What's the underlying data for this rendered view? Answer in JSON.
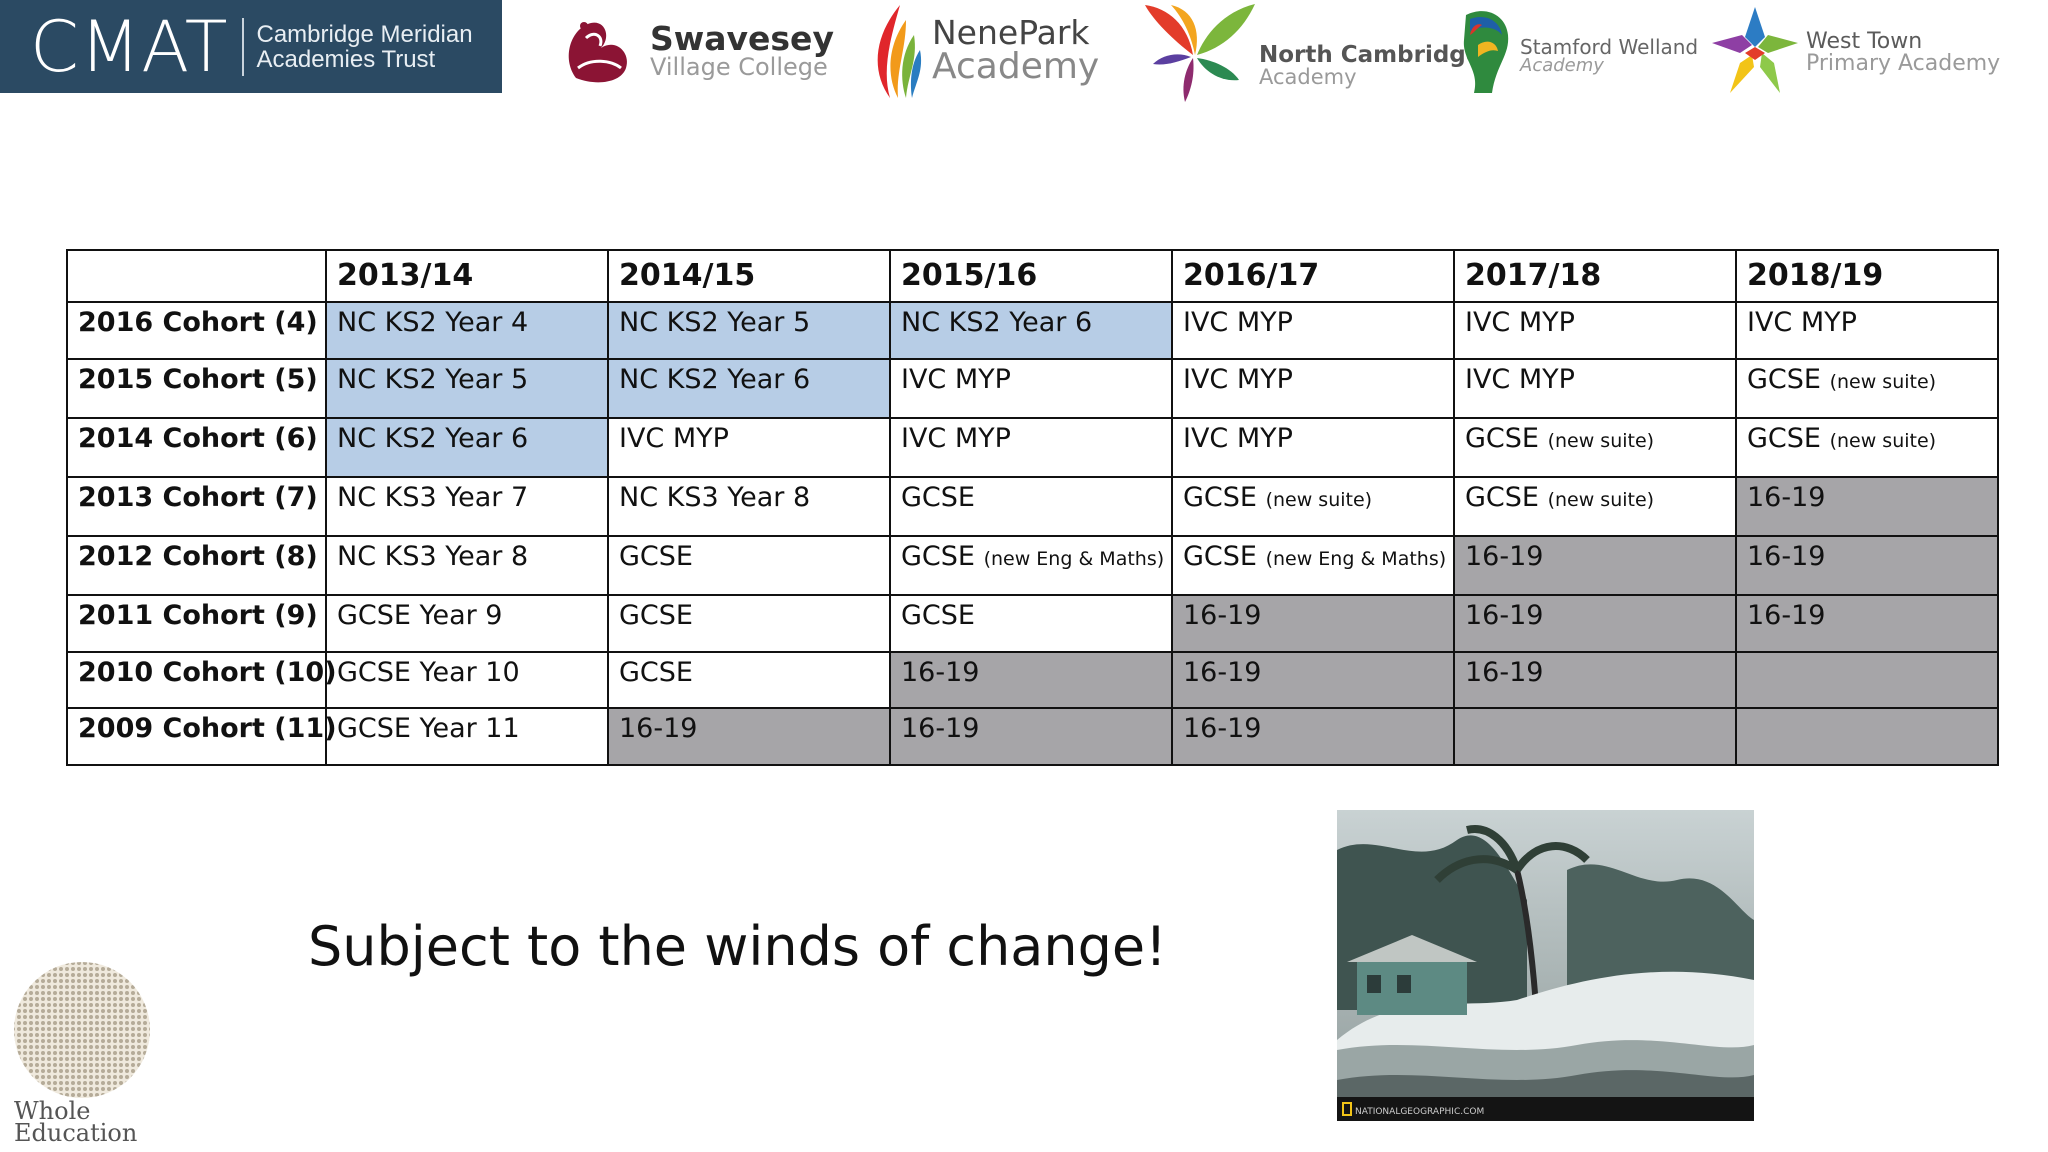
{
  "header": {
    "cmat": {
      "mark": "CMAT",
      "line1": "Cambridge Meridian",
      "line2": "Academies Trust"
    },
    "swavesey": {
      "name": "Swavesey",
      "sub": "Village College"
    },
    "nenepark": {
      "name": "NenePark",
      "sub": "Academy"
    },
    "northcambridge": {
      "name": "North Cambridge",
      "sub": "Academy"
    },
    "stamford": {
      "name": "Stamford Welland",
      "sub": "Academy"
    },
    "westtown": {
      "name": "West Town",
      "sub": "Primary Academy"
    }
  },
  "table": {
    "years": [
      "2013/14",
      "2014/15",
      "2015/16",
      "2016/17",
      "2017/18",
      "2018/19"
    ],
    "rows": [
      {
        "cohort": "2016 Cohort (4)",
        "cells": [
          {
            "text": "NC KS2 Year 4",
            "shade": "blue"
          },
          {
            "text": "NC KS2 Year 5",
            "shade": "blue"
          },
          {
            "text": "NC KS2 Year 6",
            "shade": "blue"
          },
          {
            "text": "IVC MYP"
          },
          {
            "text": "IVC MYP"
          },
          {
            "text": "IVC MYP"
          }
        ]
      },
      {
        "cohort": "2015 Cohort (5)",
        "cells": [
          {
            "text": "NC KS2 Year 5",
            "shade": "blue"
          },
          {
            "text": "NC KS2 Year 6",
            "shade": "blue"
          },
          {
            "text": "IVC MYP"
          },
          {
            "text": "IVC MYP"
          },
          {
            "text": "IVC MYP"
          },
          {
            "text": "GCSE",
            "note": "(new suite)"
          }
        ]
      },
      {
        "cohort": "2014 Cohort (6)",
        "cells": [
          {
            "text": "NC KS2 Year 6",
            "shade": "blue"
          },
          {
            "text": "IVC MYP"
          },
          {
            "text": "IVC MYP"
          },
          {
            "text": "IVC MYP"
          },
          {
            "text": "GCSE",
            "note": "(new suite)"
          },
          {
            "text": "GCSE",
            "note": "(new suite)"
          }
        ]
      },
      {
        "cohort": "2013 Cohort (7)",
        "cells": [
          {
            "text": "NC KS3 Year 7"
          },
          {
            "text": "NC KS3 Year 8"
          },
          {
            "text": "GCSE"
          },
          {
            "text": "GCSE",
            "note": "(new suite)"
          },
          {
            "text": "GCSE",
            "note": "(new suite)"
          },
          {
            "text": "16-19",
            "shade": "grey"
          }
        ]
      },
      {
        "cohort": "2012 Cohort (8)",
        "cells": [
          {
            "text": "NC KS3 Year 8"
          },
          {
            "text": "GCSE"
          },
          {
            "text": "GCSE",
            "note": "(new Eng & Maths)"
          },
          {
            "text": "GCSE",
            "note": "(new Eng & Maths)"
          },
          {
            "text": "16-19",
            "shade": "grey"
          },
          {
            "text": "16-19",
            "shade": "grey"
          }
        ]
      },
      {
        "cohort": "2011 Cohort (9)",
        "cells": [
          {
            "text": "GCSE Year 9"
          },
          {
            "text": "GCSE"
          },
          {
            "text": "GCSE"
          },
          {
            "text": "16-19",
            "shade": "grey"
          },
          {
            "text": "16-19",
            "shade": "grey"
          },
          {
            "text": "16-19",
            "shade": "grey"
          }
        ]
      },
      {
        "cohort": "2010 Cohort (10)",
        "cells": [
          {
            "text": "GCSE Year 10"
          },
          {
            "text": "GCSE"
          },
          {
            "text": "16-19",
            "shade": "grey"
          },
          {
            "text": "16-19",
            "shade": "grey"
          },
          {
            "text": "16-19",
            "shade": "grey"
          },
          {
            "text": "",
            "shade": "grey"
          }
        ]
      },
      {
        "cohort": "2009 Cohort (11)",
        "cells": [
          {
            "text": "GCSE Year 11"
          },
          {
            "text": "16-19",
            "shade": "grey"
          },
          {
            "text": "16-19",
            "shade": "grey"
          },
          {
            "text": "16-19",
            "shade": "grey"
          },
          {
            "text": "",
            "shade": "grey"
          },
          {
            "text": "",
            "shade": "grey"
          }
        ]
      }
    ]
  },
  "slogan": "Subject to the winds of change!",
  "photo": {
    "credit": "NATIONALGEOGRAPHIC.COM"
  },
  "footer_logo": {
    "line1": "Whole",
    "line2": "Education"
  },
  "colors": {
    "cmat_bg": "#2b4a63",
    "blue_cell": "#b7cde6",
    "grey_cell": "#a6a5a8"
  }
}
